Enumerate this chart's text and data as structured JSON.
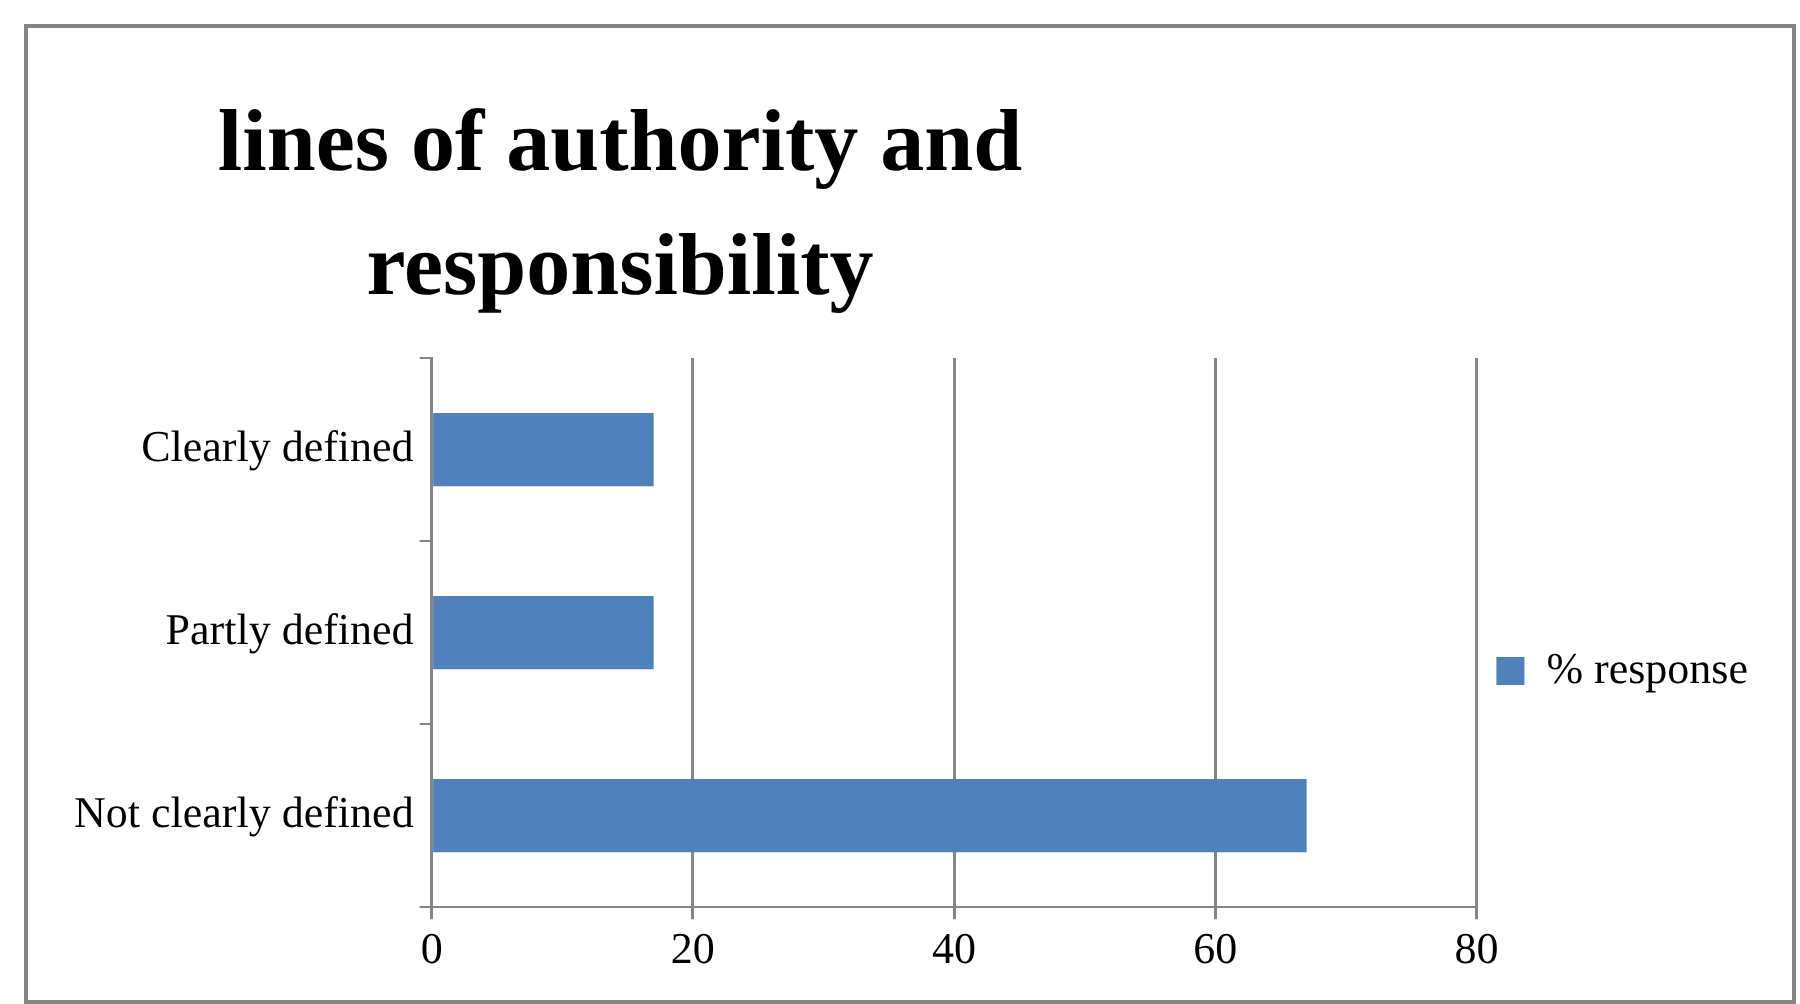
{
  "chart_data": {
    "type": "bar",
    "orientation": "horizontal",
    "title": "lines of authority and responsibility",
    "categories": [
      "Clearly defined",
      "Partly defined",
      "Not clearly defined"
    ],
    "series": [
      {
        "name": "% response",
        "color": "#4f81bd",
        "values": [
          17,
          17,
          67
        ]
      }
    ],
    "xlim": [
      0,
      80
    ],
    "xticks": [
      0,
      20,
      40,
      60,
      80
    ],
    "grid": "x",
    "legend": "right"
  }
}
